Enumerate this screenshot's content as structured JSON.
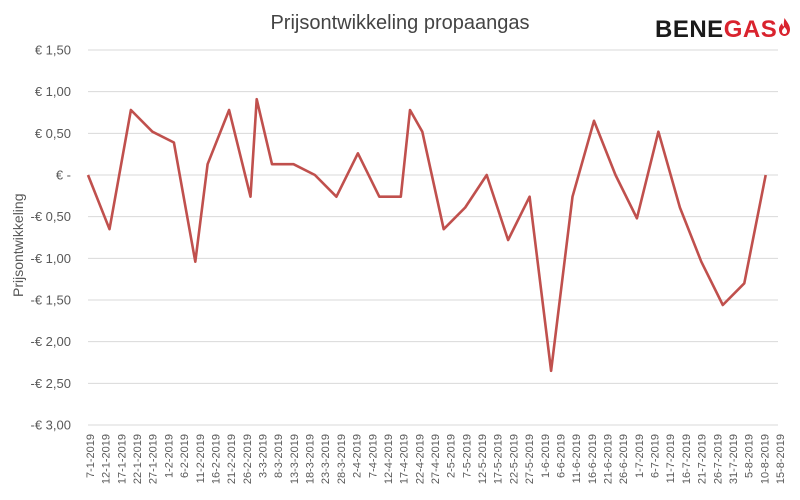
{
  "title": "Prijsontwikkeling propaangas",
  "logo": {
    "part1": "BENE",
    "part2": "GAS"
  },
  "colors": {
    "line": "#c0504d",
    "grid": "#d9d9d9",
    "text": "#595959",
    "brand_red": "#d9232e",
    "brand_dark": "#1a1a1a"
  },
  "icons": {
    "logo_flame": "flame-icon"
  },
  "chart_data": {
    "type": "line",
    "title": "Prijsontwikkeling propaangas",
    "ylabel": "Prijsontwikkeling",
    "xlabel": "",
    "ylim": [
      -3.0,
      1.5
    ],
    "yticks": [
      1.5,
      1.0,
      0.5,
      0,
      -0.5,
      -1.0,
      -1.5,
      -2.0,
      -2.5,
      -3.0
    ],
    "ytick_labels": [
      "€ 1,50",
      "€ 1,00",
      "€ 0,50",
      "€ -",
      "-€ 0,50",
      "-€ 1,00",
      "-€ 1,50",
      "-€ 2,00",
      "-€ 2,50",
      "-€ 3,00"
    ],
    "grid": true,
    "legend": "none",
    "x_tick_labels": [
      "7-1-2019",
      "12-1-2019",
      "17-1-2019",
      "22-1-2019",
      "27-1-2019",
      "1-2-2019",
      "6-2-2019",
      "11-2-2019",
      "16-2-2019",
      "21-2-2019",
      "26-2-2019",
      "3-3-2019",
      "8-3-2019",
      "13-3-2019",
      "18-3-2019",
      "23-3-2019",
      "28-3-2019",
      "2-4-2019",
      "7-4-2019",
      "12-4-2019",
      "17-4-2019",
      "22-4-2019",
      "27-4-2019",
      "2-5-2019",
      "7-5-2019",
      "12-5-2019",
      "17-5-2019",
      "22-5-2019",
      "27-5-2019",
      "1-6-2019",
      "6-6-2019",
      "11-6-2019",
      "16-6-2019",
      "21-6-2019",
      "26-6-2019",
      "1-7-2019",
      "6-7-2019",
      "11-7-2019",
      "16-7-2019",
      "21-7-2019",
      "26-7-2019",
      "31-7-2019",
      "5-8-2019",
      "10-8-2019",
      "15-8-2019"
    ],
    "x_range": [
      "2019-01-07",
      "2019-08-20"
    ],
    "series": [
      {
        "points": [
          [
            "2019-01-07",
            0.0
          ],
          [
            "2019-01-14",
            -0.65
          ],
          [
            "2019-01-21",
            0.78
          ],
          [
            "2019-01-28",
            0.52
          ],
          [
            "2019-02-04",
            0.39
          ],
          [
            "2019-02-11",
            -1.04
          ],
          [
            "2019-02-15",
            0.13
          ],
          [
            "2019-02-22",
            0.78
          ],
          [
            "2019-03-01",
            -0.26
          ],
          [
            "2019-03-03",
            0.91
          ],
          [
            "2019-03-08",
            0.13
          ],
          [
            "2019-03-15",
            0.13
          ],
          [
            "2019-03-22",
            0.0
          ],
          [
            "2019-03-29",
            -0.26
          ],
          [
            "2019-04-05",
            0.26
          ],
          [
            "2019-04-12",
            -0.26
          ],
          [
            "2019-04-19",
            -0.26
          ],
          [
            "2019-04-22",
            0.78
          ],
          [
            "2019-04-26",
            0.52
          ],
          [
            "2019-05-03",
            -0.65
          ],
          [
            "2019-05-10",
            -0.39
          ],
          [
            "2019-05-17",
            0.0
          ],
          [
            "2019-05-24",
            -0.78
          ],
          [
            "2019-05-31",
            -0.26
          ],
          [
            "2019-06-07",
            -2.35
          ],
          [
            "2019-06-14",
            -0.26
          ],
          [
            "2019-06-21",
            0.65
          ],
          [
            "2019-06-28",
            0.0
          ],
          [
            "2019-07-05",
            -0.52
          ],
          [
            "2019-07-12",
            0.52
          ],
          [
            "2019-07-19",
            -0.39
          ],
          [
            "2019-07-26",
            -1.04
          ],
          [
            "2019-08-02",
            -1.56
          ],
          [
            "2019-08-09",
            -1.3
          ],
          [
            "2019-08-16",
            0.0
          ]
        ]
      }
    ]
  }
}
